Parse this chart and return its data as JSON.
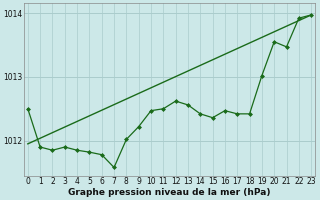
{
  "title": "Graphe pression niveau de la mer (hPa)",
  "bg_color": "#cce8e8",
  "plot_bg_color": "#cce8e8",
  "grid_color": "#aacccc",
  "line_color": "#1a6b1a",
  "marker_color": "#1a6b1a",
  "hours": [
    0,
    1,
    2,
    3,
    4,
    5,
    6,
    7,
    8,
    9,
    10,
    11,
    12,
    13,
    14,
    15,
    16,
    17,
    18,
    19,
    20,
    21,
    22,
    23
  ],
  "pressure": [
    1012.5,
    1011.9,
    1011.85,
    1011.9,
    1011.85,
    1011.82,
    1011.78,
    1011.58,
    1012.02,
    1012.22,
    1012.47,
    1012.5,
    1012.62,
    1012.56,
    1012.42,
    1012.36,
    1012.47,
    1012.42,
    1012.42,
    1013.02,
    1013.55,
    1013.47,
    1013.92,
    1013.97
  ],
  "trend_x": [
    0,
    23
  ],
  "trend_y": [
    1011.95,
    1013.97
  ],
  "ylim_min": 1011.45,
  "ylim_max": 1014.15,
  "yticks": [
    1012,
    1013,
    1014
  ],
  "ytick_labels": [
    "1012",
    "1013",
    "1014"
  ],
  "xticks": [
    0,
    1,
    2,
    3,
    4,
    5,
    6,
    7,
    8,
    9,
    10,
    11,
    12,
    13,
    14,
    15,
    16,
    17,
    18,
    19,
    20,
    21,
    22,
    23
  ],
  "title_fontsize": 6.5,
  "tick_fontsize": 5.5
}
